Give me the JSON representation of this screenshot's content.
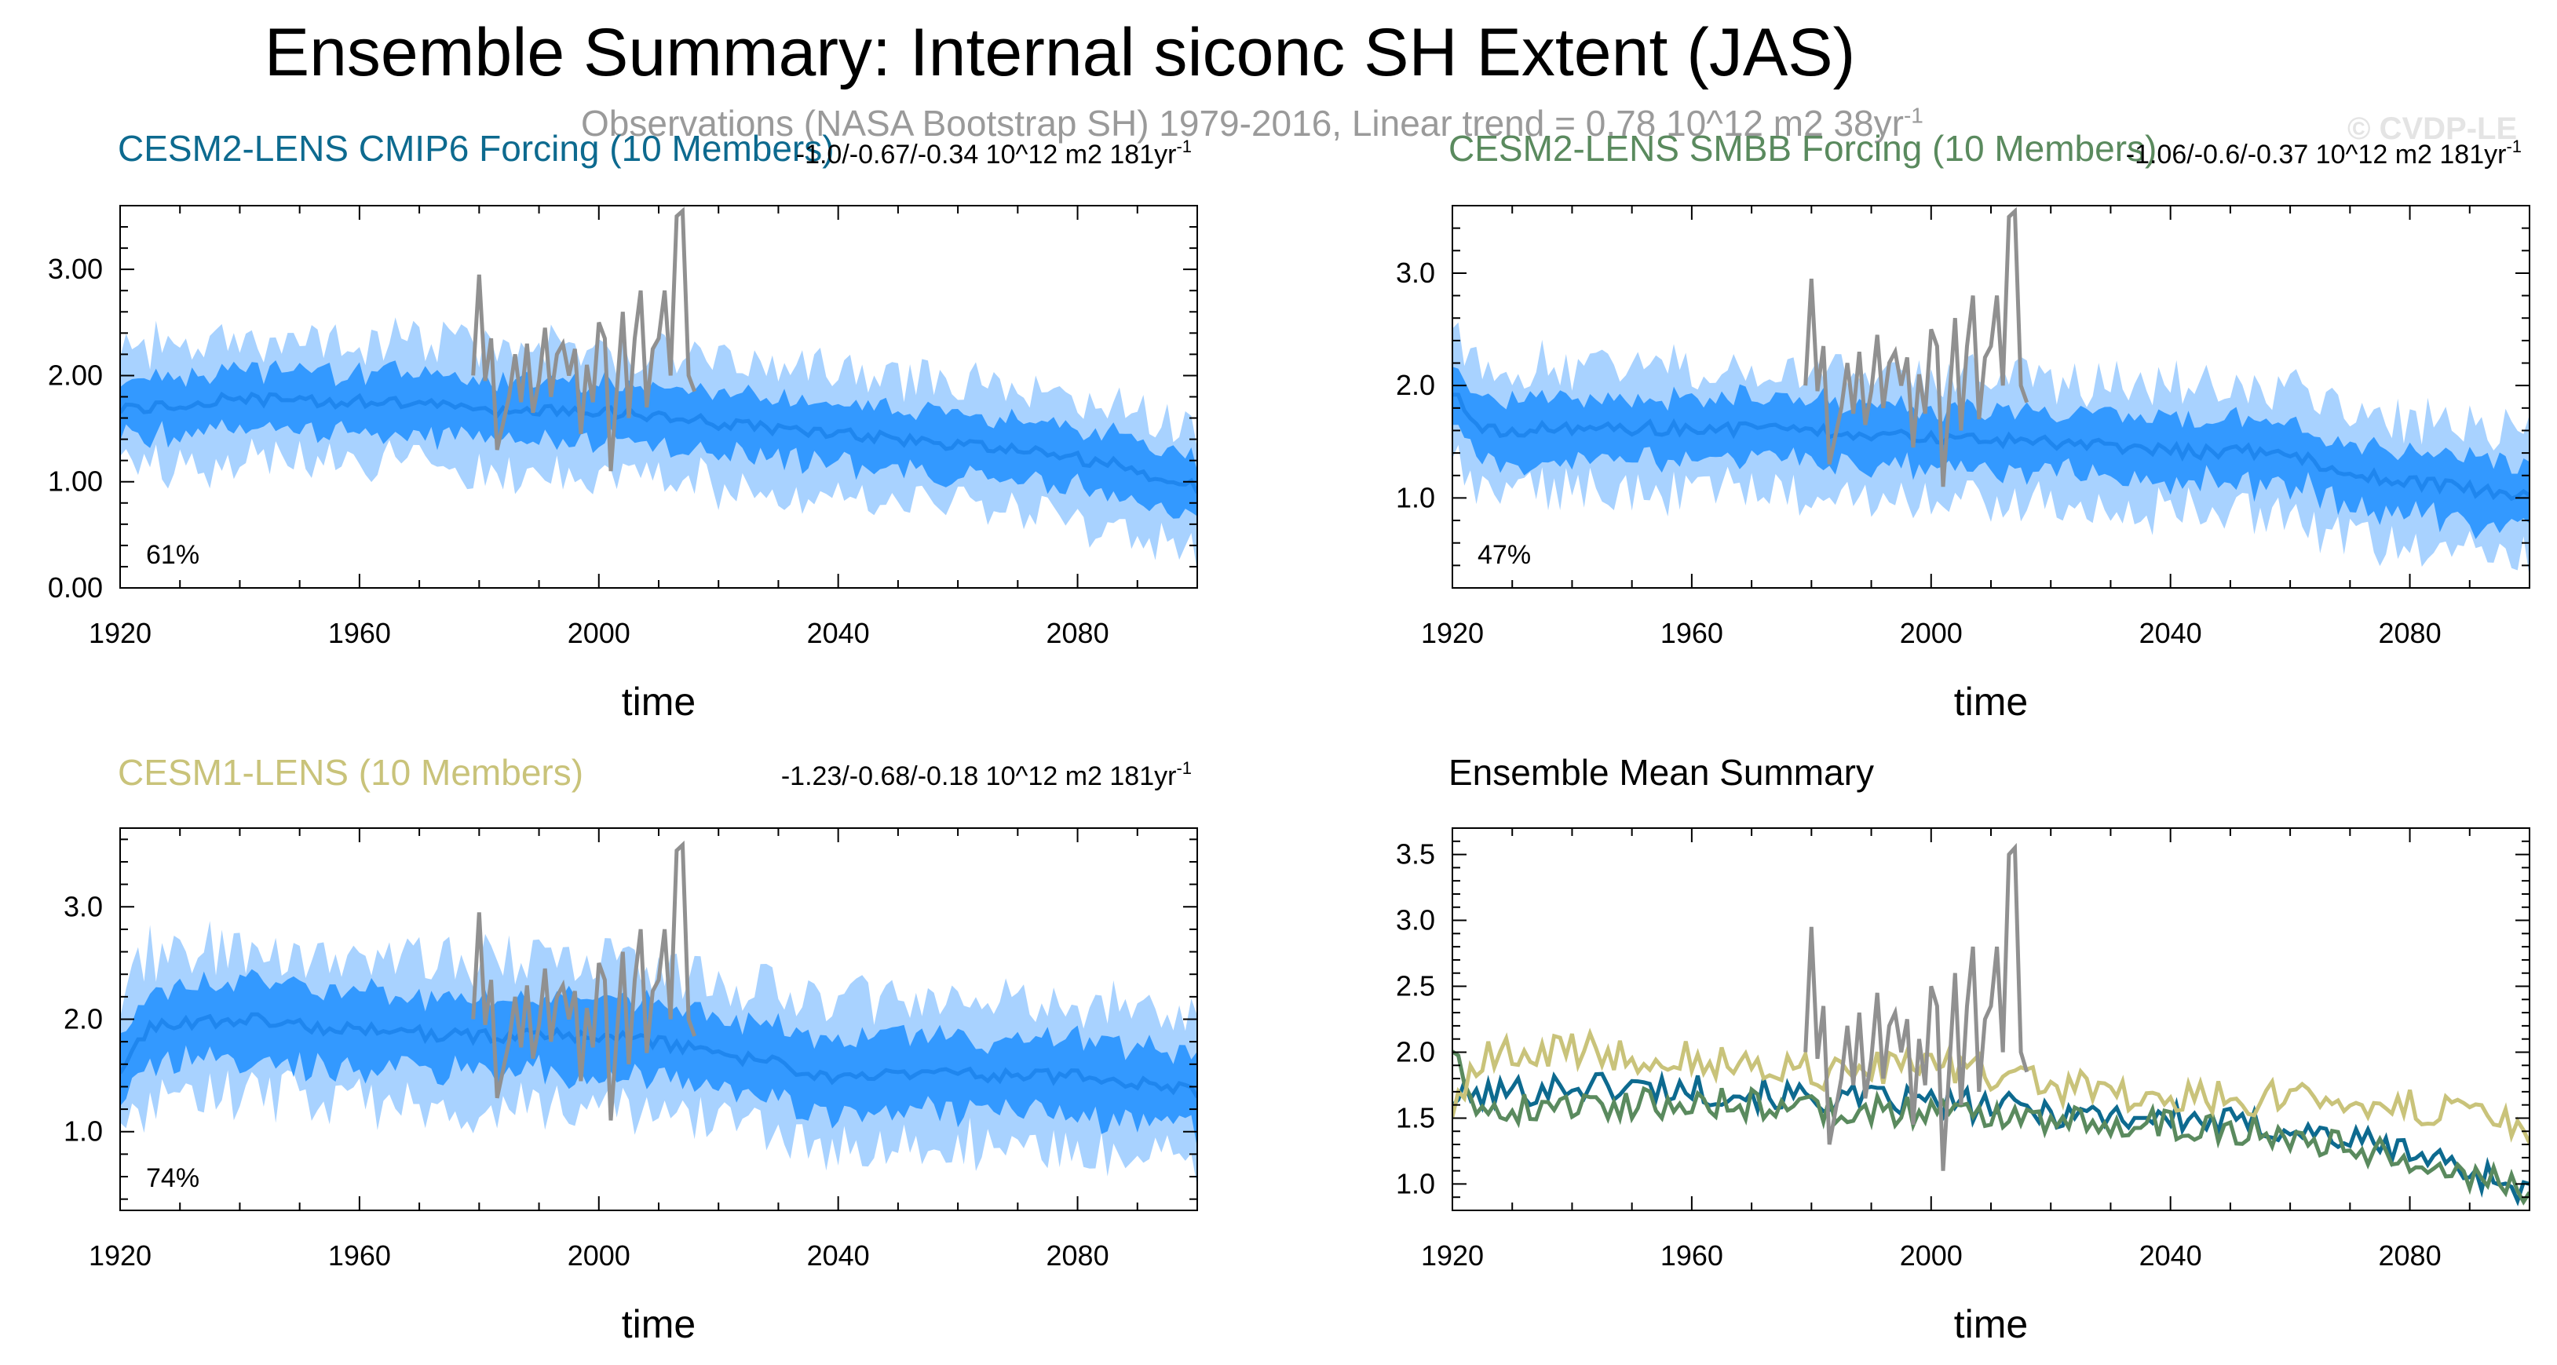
{
  "title": "Ensemble Summary: Internal siconc SH Extent (JAS)",
  "observations_label": "Observations (NASA Bootstrap SH) 1979-2016, Linear trend = 0.78 10^12 m2 38yr",
  "observations_exp": "-1",
  "watermark": "© CVDP-LE",
  "colors": {
    "inner_band": "#3399ff",
    "outer_band": "#a8d2ff",
    "mean_line": "#1f86ee",
    "obs": "#909090",
    "cesm2_cmip6": "#0d6a8f",
    "cesm2_smbb": "#5a8a5e",
    "cesm1": "#c9c37a"
  },
  "chart_data": [
    {
      "id": "cesm2-cmip6",
      "type": "area",
      "title": "CESM2-LENS CMIP6 Forcing (10 Members)",
      "title_color": "#0d6a8f",
      "trend_label": "-1.0/-0.67/-0.34 10^12 m2 181yr",
      "trend_exp": "-1",
      "percent_label": "61%",
      "xlabel": "time",
      "ylabel": "",
      "xlim": [
        1920,
        2100
      ],
      "ylim": [
        0,
        3.6
      ],
      "xticks": [
        1920,
        1960,
        2000,
        2040,
        2080
      ],
      "yticks": [
        0,
        1,
        2,
        3
      ],
      "ytick_labels": [
        "0.00",
        "1.00",
        "2.00",
        "3.00"
      ],
      "mean_keypoints": [
        [
          1920,
          1.68
        ],
        [
          1940,
          1.78
        ],
        [
          1960,
          1.75
        ],
        [
          1980,
          1.68
        ],
        [
          2000,
          1.65
        ],
        [
          2010,
          1.62
        ],
        [
          2030,
          1.48
        ],
        [
          2050,
          1.4
        ],
        [
          2070,
          1.3
        ],
        [
          2085,
          1.18
        ],
        [
          2100,
          0.95
        ]
      ],
      "inner_spread": 0.28,
      "outer_spread": 0.58,
      "seed": 11,
      "show_obs": true
    },
    {
      "id": "cesm2-smbb",
      "type": "area",
      "title": "CESM2-LENS SMBB Forcing (10 Members)",
      "title_color": "#5a8a5e",
      "trend_label": "-1.06/-0.6/-0.37 10^12 m2 181yr",
      "trend_exp": "-1",
      "percent_label": "47%",
      "xlabel": "time",
      "ylabel": "",
      "xlim": [
        1920,
        2100
      ],
      "ylim": [
        0.2,
        3.6
      ],
      "xticks": [
        1920,
        1960,
        2000,
        2040,
        2080
      ],
      "yticks": [
        1,
        2,
        3
      ],
      "ytick_labels": [
        "1.0",
        "2.0",
        "3.0"
      ],
      "mean_keypoints": [
        [
          1920,
          1.95
        ],
        [
          1925,
          1.6
        ],
        [
          1940,
          1.62
        ],
        [
          1960,
          1.62
        ],
        [
          1980,
          1.6
        ],
        [
          2000,
          1.55
        ],
        [
          2020,
          1.5
        ],
        [
          2040,
          1.42
        ],
        [
          2060,
          1.4
        ],
        [
          2070,
          1.22
        ],
        [
          2085,
          1.12
        ],
        [
          2100,
          1.0
        ]
      ],
      "inner_spread": 0.27,
      "outer_spread": 0.56,
      "seed": 23,
      "show_obs": true
    },
    {
      "id": "cesm1",
      "type": "area",
      "title": "CESM1-LENS (10 Members)",
      "title_color": "#c9c37a",
      "trend_label": "-1.23/-0.68/-0.18 10^12 m2 181yr",
      "trend_exp": "-1",
      "percent_label": "74%",
      "xlabel": "time",
      "ylabel": "",
      "xlim": [
        1920,
        2100
      ],
      "ylim": [
        0.3,
        3.7
      ],
      "xticks": [
        1920,
        1960,
        2000,
        2040,
        2080
      ],
      "yticks": [
        1,
        2,
        3
      ],
      "ytick_labels": [
        "1.0",
        "2.0",
        "3.0"
      ],
      "mean_keypoints": [
        [
          1920,
          1.55
        ],
        [
          1925,
          1.95
        ],
        [
          1940,
          2.0
        ],
        [
          1960,
          1.9
        ],
        [
          1980,
          1.85
        ],
        [
          2000,
          1.85
        ],
        [
          2010,
          1.8
        ],
        [
          2030,
          1.6
        ],
        [
          2040,
          1.48
        ],
        [
          2060,
          1.5
        ],
        [
          2080,
          1.5
        ],
        [
          2100,
          1.35
        ]
      ],
      "inner_spread": 0.33,
      "outer_spread": 0.65,
      "seed": 37,
      "show_obs": true
    },
    {
      "id": "ensemble-mean",
      "type": "line",
      "title": "Ensemble Mean Summary",
      "title_color": "#000000",
      "xlabel": "time",
      "ylabel": "",
      "xlim": [
        1920,
        2100
      ],
      "ylim": [
        0.8,
        3.7
      ],
      "xticks": [
        1920,
        1960,
        2000,
        2040,
        2080
      ],
      "yticks": [
        1.0,
        1.5,
        2.0,
        2.5,
        3.0,
        3.5
      ],
      "ytick_labels": [
        "1.0",
        "1.5",
        "2.0",
        "2.5",
        "3.0",
        "3.5"
      ],
      "series": [
        {
          "name": "CESM2-LENS CMIP6 Forcing",
          "color": "#0d6a8f",
          "keypoints": [
            [
              1920,
              1.65
            ],
            [
              1940,
              1.75
            ],
            [
              1960,
              1.72
            ],
            [
              1980,
              1.65
            ],
            [
              2000,
              1.62
            ],
            [
              2020,
              1.55
            ],
            [
              2040,
              1.5
            ],
            [
              2060,
              1.42
            ],
            [
              2080,
              1.25
            ],
            [
              2100,
              0.95
            ]
          ],
          "noise": 0.12,
          "seed": 101
        },
        {
          "name": "CESM2-LENS SMBB Forcing",
          "color": "#5a8a5e",
          "keypoints": [
            [
              1920,
              2.05
            ],
            [
              1925,
              1.55
            ],
            [
              1940,
              1.6
            ],
            [
              1960,
              1.62
            ],
            [
              1980,
              1.58
            ],
            [
              2000,
              1.55
            ],
            [
              2020,
              1.5
            ],
            [
              2040,
              1.45
            ],
            [
              2060,
              1.38
            ],
            [
              2080,
              1.2
            ],
            [
              2100,
              0.95
            ]
          ],
          "noise": 0.12,
          "seed": 202
        },
        {
          "name": "CESM1-LENS",
          "color": "#c9c37a",
          "keypoints": [
            [
              1920,
              1.55
            ],
            [
              1925,
              1.95
            ],
            [
              1940,
              2.02
            ],
            [
              1960,
              1.95
            ],
            [
              1980,
              1.85
            ],
            [
              2000,
              1.9
            ],
            [
              2020,
              1.75
            ],
            [
              2040,
              1.65
            ],
            [
              2060,
              1.65
            ],
            [
              2080,
              1.6
            ],
            [
              2100,
              1.4
            ]
          ],
          "noise": 0.14,
          "seed": 303
        }
      ],
      "show_obs": true
    }
  ],
  "observations": {
    "name": "Observations (NASA Bootstrap SH)",
    "years": [
      1979,
      1980,
      1981,
      1982,
      1983,
      1984,
      1985,
      1986,
      1987,
      1988,
      1989,
      1990,
      1991,
      1992,
      1993,
      1994,
      1995,
      1996,
      1997,
      1998,
      1999,
      2000,
      2001,
      2002,
      2003,
      2004,
      2005,
      2006,
      2007,
      2008,
      2009,
      2010,
      2011,
      2012,
      2013,
      2014,
      2015,
      2016
    ],
    "values": [
      2.0,
      2.95,
      1.95,
      2.35,
      1.3,
      1.55,
      1.8,
      2.2,
      1.75,
      2.3,
      1.65,
      1.95,
      2.45,
      1.8,
      2.2,
      2.3,
      2.0,
      2.25,
      1.45,
      2.1,
      1.75,
      2.5,
      2.35,
      1.1,
      1.85,
      2.6,
      1.6,
      2.35,
      2.8,
      1.7,
      2.25,
      2.35,
      2.8,
      2.0,
      3.5,
      3.55,
      2.0,
      1.85
    ]
  }
}
